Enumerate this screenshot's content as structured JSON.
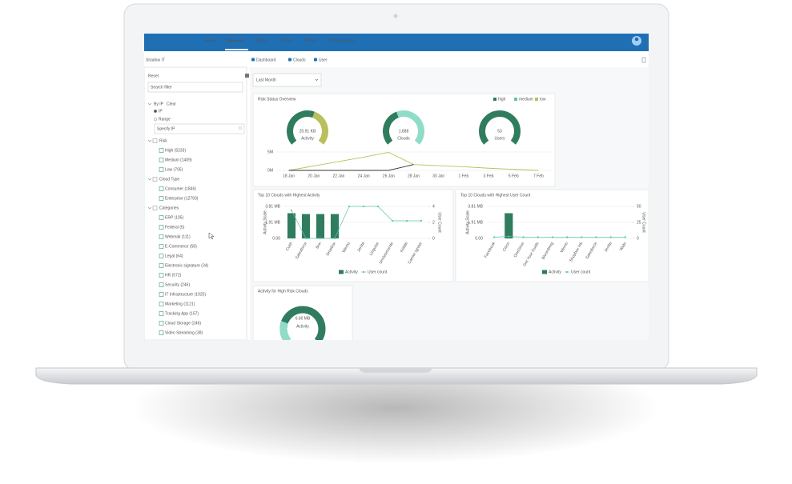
{
  "nav": {
    "items": [
      "Home",
      "Discover",
      "Monitor",
      "Policy",
      "Protect",
      "Administration"
    ],
    "help": "?"
  },
  "sidebar": {
    "title": "Shadow IT",
    "reset": "Reset",
    "search": "Search filter",
    "by_ip": "By IP",
    "clear": "Clear",
    "ip_options": [
      "IP",
      "Range"
    ],
    "specify": "Specify IP",
    "groups": [
      {
        "label": "Risk",
        "items": [
          "High (5233)",
          "Medium (1409)",
          "Low (705)"
        ]
      },
      {
        "label": "Cloud Type",
        "items": [
          "Consumer (1846)",
          "Enterprise (12793)"
        ]
      },
      {
        "label": "Categories",
        "items": [
          "ERP (105)",
          "Federal (5)",
          "Webmail (111)",
          "E-Commerce (58)",
          "Legal (64)",
          "Electronic signature (34)",
          "HR (572)",
          "Security (246)",
          "IT Infrastructure (1925)",
          "Marketing (1121)",
          "Tracking App (157)",
          "Cloud Storage (246)",
          "Video Streaming (38)"
        ]
      }
    ]
  },
  "tabs": [
    "Dashboard",
    "Clouds",
    "User"
  ],
  "period": "Last Month",
  "risk_overview": {
    "title": "Risk Status Overview",
    "legend": [
      "high",
      "medium",
      "low"
    ],
    "gauges": [
      {
        "value": "20.91 KB",
        "label": "Activity"
      },
      {
        "value": "1,688",
        "label": "Clouds"
      },
      {
        "value": "53",
        "label": "Users"
      }
    ],
    "chart": {
      "categories": [
        "18 Jan",
        "20 Jan",
        "22 Jan",
        "24 Jan",
        "26 Jan",
        "28 Jan",
        "30 Jan",
        "1 Feb",
        "3 Feb",
        "5 Feb",
        "7 Feb"
      ],
      "ylim": [
        0,
        5
      ],
      "yticks": [
        {
          "value": 5,
          "label": "5M"
        },
        {
          "value": 0,
          "label": "0M"
        }
      ],
      "series": [
        {
          "color": "#b9bf5a",
          "values": [
            0,
            1.2,
            2.4,
            3.6,
            4.9,
            1.6,
            1.3,
            1.0,
            0.6,
            0.3,
            0
          ]
        },
        {
          "color": "#2b3a35",
          "values": [
            0,
            0,
            0,
            0,
            0,
            1.6,
            null,
            null,
            null,
            null,
            null
          ]
        }
      ]
    }
  },
  "top_activity": {
    "title": "Top 10 Clouds with Highest Activity",
    "y_title": "Activity Scale",
    "y2_title": "User Count",
    "categories": [
      "Cush",
      "Salesforce",
      "Box",
      "Dropbox",
      "Wemo",
      "Jenita",
      "Linguise",
      "Unclesmonde",
      "Kiddle",
      "Carrier Igniter"
    ],
    "ylim": [
      0,
      3.81
    ],
    "yticks": [
      {
        "value": 3.81,
        "label": "3.81 MB"
      },
      {
        "value": 1.91,
        "label": "1.91 MB"
      },
      {
        "value": 0,
        "label": "0.00"
      }
    ],
    "y2lim": [
      0,
      4
    ],
    "y2ticks": [
      4,
      2,
      0
    ],
    "series": [
      {
        "name": "Activity",
        "color": "#2f7d5e",
        "values": [
          3.0,
          2.9,
          2.9,
          2.9,
          0,
          0,
          0,
          0,
          0,
          0
        ]
      },
      {
        "name": "User count",
        "color": "#5cc6b0",
        "axis": "y2",
        "values": [
          3.5,
          0,
          0,
          0,
          4,
          4,
          4,
          2.2,
          2.2,
          2.2
        ]
      }
    ]
  },
  "top_users": {
    "title": "Top 10 Clouds with Highest User Count",
    "y_title": "Activity Scale",
    "y2_title": "User Count",
    "categories": [
      "Facebook",
      "Cisco",
      "OneDrive",
      "Get Your Guide",
      "Bloomberg",
      "Wemo",
      "Shopbox Ink",
      "Salesforce",
      "Jenita",
      "Wato"
    ],
    "ylim": [
      0,
      3.81
    ],
    "yticks": [
      {
        "value": 3.81,
        "label": "3.81 MB"
      },
      {
        "value": 1.91,
        "label": "1.91 MB"
      },
      {
        "value": 0,
        "label": "0.00"
      }
    ],
    "y2lim": [
      0,
      50
    ],
    "y2ticks": [
      50,
      25,
      0
    ],
    "series": [
      {
        "name": "Activity",
        "color": "#2f7d5e",
        "values": [
          0,
          3.0,
          0,
          0,
          0,
          0,
          0,
          0,
          0,
          0
        ]
      },
      {
        "name": "User count",
        "color": "#5cc6b0",
        "axis": "y2",
        "values": [
          2,
          3,
          2,
          2,
          2,
          2,
          2,
          2,
          2,
          2
        ]
      }
    ]
  },
  "high_risk": {
    "title": "Activity for High Risk Clouds",
    "value": "6.60 MB",
    "label": "Activity"
  }
}
